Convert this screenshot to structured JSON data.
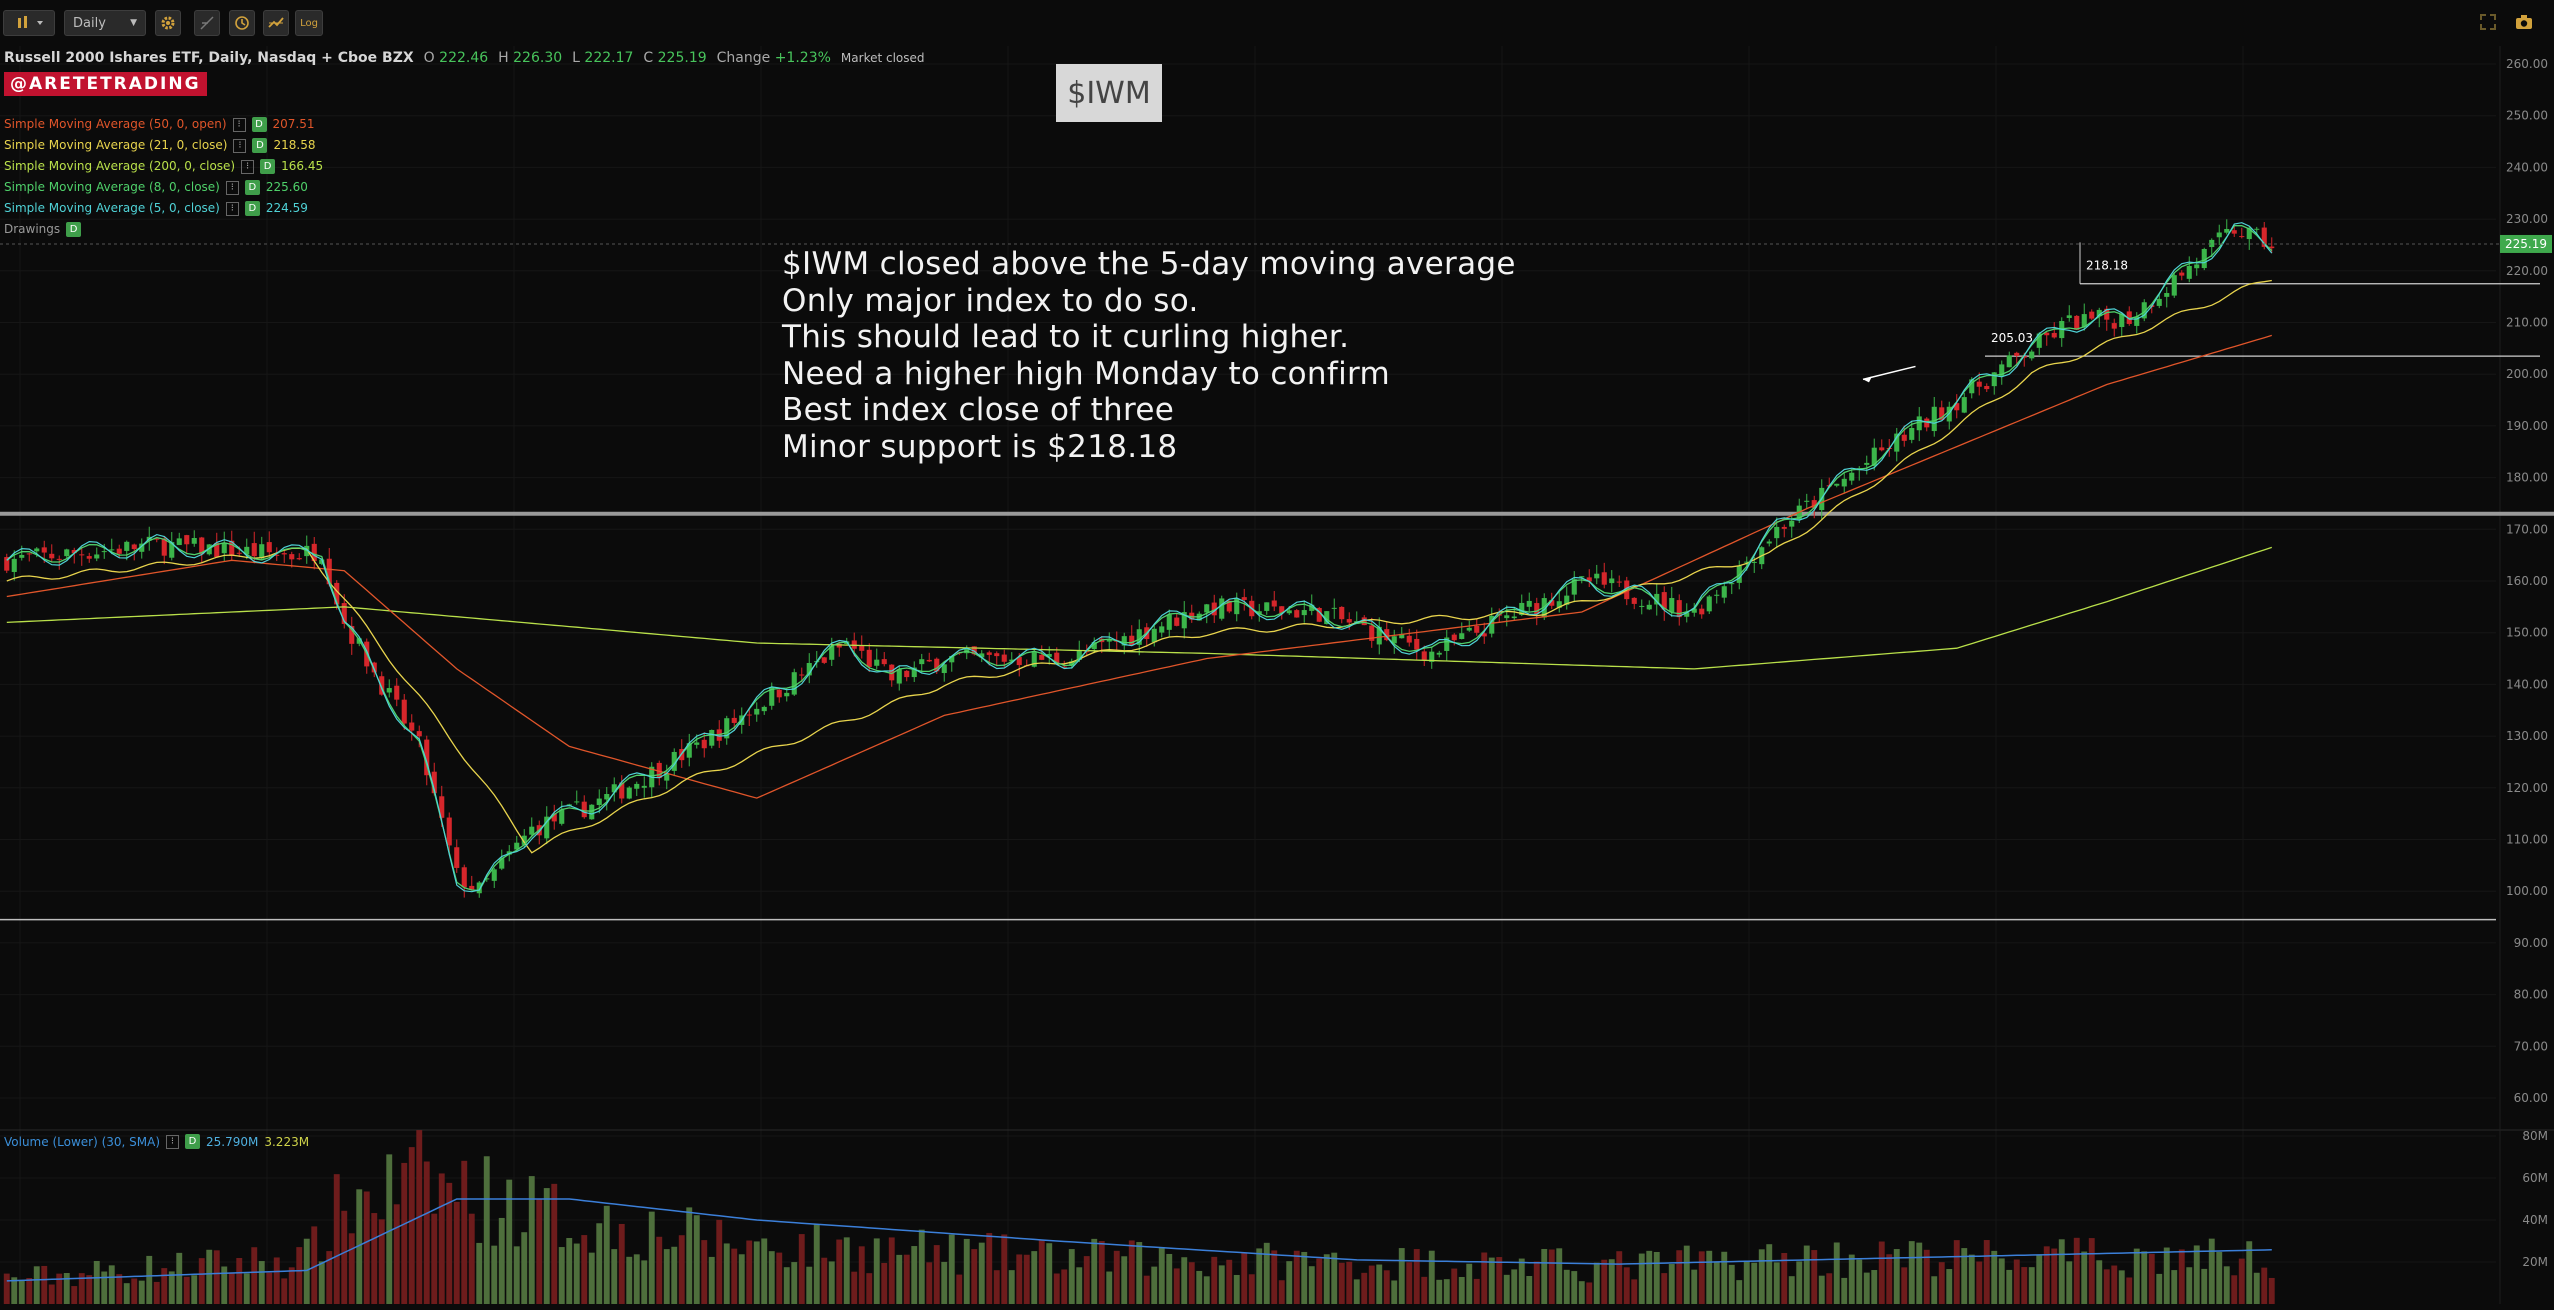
{
  "toolbar": {
    "chart_style_icon": "candlestick-icon",
    "period": "Daily",
    "log_label": "Log",
    "right_icons": [
      "expand-icon",
      "camera-icon"
    ]
  },
  "header": {
    "symbol_desc": "Russell 2000 Ishares ETF, Daily, Nasdaq + Cboe BZX",
    "open_label": "O",
    "open": "222.46",
    "high_label": "H",
    "high": "226.30",
    "low_label": "L",
    "low": "222.17",
    "close_label": "C",
    "close": "225.19",
    "change_label": "Change",
    "change": "+1.23%",
    "status": "Market closed",
    "brand": "@ARETETRADING"
  },
  "indicators": [
    {
      "label": "Simple Moving Average (50, 0, open)",
      "value": "207.51",
      "color": "#e0552a"
    },
    {
      "label": "Simple Moving Average (21, 0, close)",
      "value": "218.58",
      "color": "#e8d44d"
    },
    {
      "label": "Simple Moving Average (200, 0, close)",
      "value": "166.45",
      "color": "#b9e04a"
    },
    {
      "label": "Simple Moving Average (8, 0, close)",
      "value": "225.60",
      "color": "#4fd06a"
    },
    {
      "label": "Simple Moving Average (5, 0, close)",
      "value": "224.59",
      "color": "#4fd2d6"
    }
  ],
  "drawings_label": "Drawings",
  "badge_letter": "D",
  "ticker_label": "$IWM",
  "annotation_lines": [
    "$IWM closed above the 5-day moving average",
    "Only major index to do so.",
    "This should lead to it curling higher.",
    "Need a higher high Monday to confirm",
    "Best index close of three",
    "Minor support is $218.18"
  ],
  "volume_legend": {
    "label": "Volume (Lower) (30, SMA)",
    "value1": "25.790M",
    "value2": "3.223M"
  },
  "chart_data": {
    "type": "candlestick",
    "title": "Russell 2000 Ishares ETF, Daily, Nasdaq + Cboe BZX",
    "price_axis": {
      "ylim": [
        55,
        265
      ],
      "ticks": [
        "260.00",
        "250.00",
        "240.00",
        "230.00",
        "220.00",
        "210.00",
        "200.00",
        "190.00",
        "180.00",
        "170.00",
        "160.00",
        "150.00",
        "140.00",
        "130.00",
        "120.00",
        "110.00",
        "100.00",
        "90.00",
        "80.00",
        "70.00",
        "60.00"
      ],
      "last_price_label": "225.19",
      "last_price_color": "#3fa94d"
    },
    "volume_axis": {
      "ylim": [
        0,
        82
      ],
      "ticks": [
        "80M",
        "60M",
        "40M",
        "20M"
      ],
      "unit": "M"
    },
    "price_path_keyframes": [
      [
        0,
        164
      ],
      [
        20,
        167
      ],
      [
        38,
        165
      ],
      [
        42,
        166
      ],
      [
        45,
        152
      ],
      [
        55,
        128
      ],
      [
        60,
        103
      ],
      [
        63,
        100
      ],
      [
        70,
        112
      ],
      [
        80,
        118
      ],
      [
        92,
        128
      ],
      [
        98,
        134
      ],
      [
        112,
        148
      ],
      [
        118,
        141
      ],
      [
        125,
        145
      ],
      [
        142,
        145
      ],
      [
        160,
        155
      ],
      [
        175,
        154
      ],
      [
        190,
        146
      ],
      [
        200,
        153
      ],
      [
        211,
        160
      ],
      [
        225,
        154
      ],
      [
        232,
        164
      ],
      [
        236,
        170
      ],
      [
        250,
        185
      ],
      [
        275,
        210
      ],
      [
        283,
        211
      ],
      [
        297,
        228
      ],
      [
        302,
        225
      ]
    ],
    "sma50_keyframes": [
      [
        0,
        157
      ],
      [
        30,
        164
      ],
      [
        45,
        162
      ],
      [
        60,
        143
      ],
      [
        75,
        128
      ],
      [
        100,
        118
      ],
      [
        125,
        134
      ],
      [
        160,
        145
      ],
      [
        210,
        154
      ],
      [
        240,
        174
      ],
      [
        280,
        198
      ],
      [
        302,
        207.5
      ]
    ],
    "sma21_keyframes": [
      [
        0,
        160
      ],
      [
        40,
        166
      ],
      [
        60,
        128
      ],
      [
        70,
        108
      ],
      [
        90,
        121
      ],
      [
        125,
        140
      ],
      [
        160,
        150
      ],
      [
        205,
        154
      ],
      [
        235,
        165
      ],
      [
        270,
        200
      ],
      [
        302,
        218.6
      ]
    ],
    "sma200_keyframes": [
      [
        0,
        152
      ],
      [
        45,
        155
      ],
      [
        100,
        148
      ],
      [
        160,
        146
      ],
      [
        225,
        143
      ],
      [
        260,
        147
      ],
      [
        280,
        156
      ],
      [
        302,
        166.5
      ]
    ],
    "horizontal_levels": [
      {
        "price": 173,
        "label": ""
      },
      {
        "price": 94.5,
        "label": ""
      },
      {
        "price": 217.5,
        "label": "218.18"
      },
      {
        "price": 203.5,
        "label": "205.03"
      }
    ],
    "volume_path_keyframes": [
      [
        0,
        12
      ],
      [
        40,
        22
      ],
      [
        45,
        48
      ],
      [
        55,
        58
      ],
      [
        62,
        52
      ],
      [
        75,
        40
      ],
      [
        100,
        28
      ],
      [
        140,
        22
      ],
      [
        180,
        20
      ],
      [
        215,
        18
      ],
      [
        240,
        22
      ],
      [
        300,
        22
      ]
    ],
    "volume_sma_keyframes": [
      [
        0,
        11
      ],
      [
        40,
        16
      ],
      [
        60,
        50
      ],
      [
        75,
        50
      ],
      [
        100,
        40
      ],
      [
        140,
        30
      ],
      [
        180,
        21
      ],
      [
        215,
        19
      ],
      [
        240,
        21
      ],
      [
        302,
        25.8
      ]
    ]
  }
}
